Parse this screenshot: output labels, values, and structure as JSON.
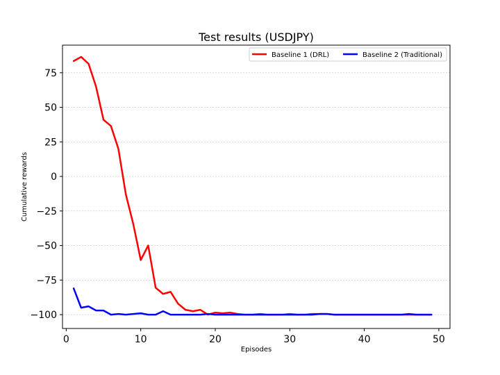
{
  "chart_data": {
    "type": "line",
    "title": "Test results (USDJPY)",
    "xlabel": "Episodes",
    "ylabel": "Cumulative rewards",
    "xlim": [
      -0.5,
      51.5
    ],
    "ylim": [
      -110,
      95
    ],
    "xticks": [
      0,
      10,
      20,
      30,
      40,
      50
    ],
    "yticks": [
      75,
      50,
      25,
      0,
      -25,
      -50,
      -75,
      -100
    ],
    "ytick_labels": [
      "75",
      "50",
      "25",
      "0",
      "−25",
      "−50",
      "−75",
      "−100"
    ],
    "grid": "horizontal dashed",
    "legend_position": "top-right",
    "x": [
      1,
      2,
      3,
      4,
      5,
      6,
      7,
      8,
      9,
      10,
      11,
      12,
      13,
      14,
      15,
      16,
      17,
      18,
      19,
      20,
      21,
      22,
      23,
      24,
      25,
      26,
      27,
      28,
      29,
      30,
      31,
      32,
      33,
      34,
      35,
      36,
      37,
      38,
      39,
      40,
      41,
      42,
      43,
      44,
      45,
      46,
      47,
      48,
      49
    ],
    "series": [
      {
        "name": "Baseline 1 (DRL)",
        "color": "#ff0000",
        "values": [
          83.5,
          86.5,
          81.5,
          65,
          41,
          36.5,
          20,
          -13,
          -34.5,
          -60.5,
          -50,
          -80.5,
          -85,
          -83.5,
          -92,
          -96.5,
          -97.5,
          -96.5,
          -100,
          -98.5,
          -99,
          -98.5,
          -99.5,
          -100,
          -100,
          -99.5,
          -100,
          -100,
          -100,
          -99.5,
          -100,
          -100,
          -99.5,
          -99.5,
          -99.5,
          -100,
          -100,
          -100,
          -100,
          -100,
          -100,
          -100,
          -100,
          -100,
          -100,
          -100,
          -100,
          -100,
          -100
        ]
      },
      {
        "name": "Baseline 2 (Traditional)",
        "color": "#0000ff",
        "values": [
          -81,
          -95,
          -94,
          -97,
          -97,
          -100,
          -99.5,
          -100,
          -99.5,
          -99,
          -100,
          -100,
          -97.5,
          -100,
          -100,
          -100,
          -100,
          -100,
          -99.5,
          -100,
          -100,
          -100,
          -100,
          -100,
          -100,
          -100,
          -100,
          -100,
          -100,
          -100,
          -100,
          -100,
          -100,
          -99.5,
          -99.5,
          -100,
          -100,
          -100,
          -100,
          -100,
          -100,
          -100,
          -100,
          -100,
          -100,
          -99.5,
          -100,
          -100,
          -100
        ]
      }
    ]
  }
}
